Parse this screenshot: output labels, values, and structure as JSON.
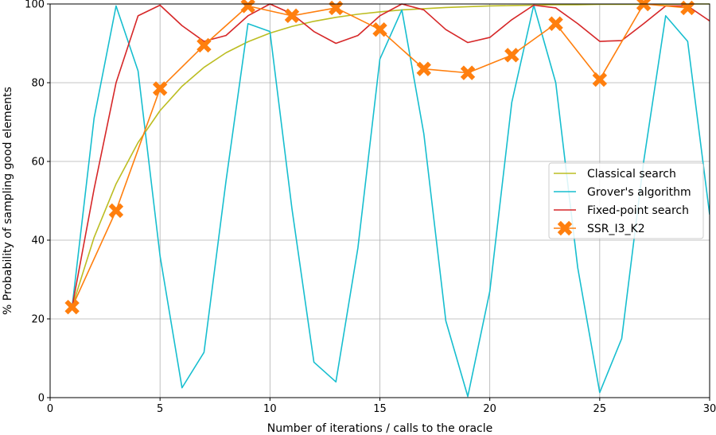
{
  "chart_data": {
    "type": "line",
    "title": "",
    "xlabel": "Number of iterations / calls to the oracle",
    "ylabel": "% Probability of sampling good elements",
    "xlim": [
      0,
      30
    ],
    "ylim": [
      0,
      100
    ],
    "xticks": [
      0,
      5,
      10,
      15,
      20,
      25,
      30
    ],
    "yticks": [
      0,
      20,
      40,
      60,
      80,
      100
    ],
    "grid": true,
    "legend_position": "center-right",
    "series": [
      {
        "name": "Classical search",
        "color": "#bcbd22",
        "marker": "none",
        "x": [
          1,
          2,
          3,
          4,
          5,
          6,
          7,
          8,
          9,
          10,
          11,
          12,
          13,
          14,
          15,
          16,
          17,
          18,
          19,
          20,
          21,
          22,
          23,
          24,
          25,
          26,
          27,
          28,
          29,
          30
        ],
        "values": [
          23,
          40.7,
          54.3,
          64.8,
          72.9,
          79.1,
          83.9,
          87.6,
          90.4,
          92.6,
          94.3,
          95.6,
          96.6,
          97.4,
          98,
          98.5,
          98.8,
          99.1,
          99.3,
          99.5,
          99.6,
          99.7,
          99.8,
          99.8,
          99.9,
          99.9,
          99.9,
          99.9,
          100,
          100
        ]
      },
      {
        "name": "Grover's algorithm",
        "color": "#17becf",
        "marker": "none",
        "x": [
          1,
          2,
          3,
          4,
          5,
          6,
          7,
          8,
          9,
          10,
          11,
          12,
          13,
          14,
          15,
          16,
          17,
          18,
          19,
          20,
          21,
          22,
          23,
          24,
          25,
          26,
          27,
          28,
          29,
          30
        ],
        "values": [
          23,
          71,
          99.5,
          83,
          36,
          2.5,
          11.5,
          55,
          95,
          93,
          48,
          9,
          4,
          38,
          86,
          98.5,
          67,
          19.5,
          0.3,
          27,
          75,
          99.7,
          80,
          33,
          1.3,
          15,
          60,
          97,
          90.5,
          46.5
        ]
      },
      {
        "name": "Fixed-point search",
        "color": "#d62728",
        "marker": "none",
        "x": [
          1,
          2,
          3,
          4,
          5,
          6,
          7,
          8,
          9,
          10,
          11,
          12,
          13,
          14,
          15,
          16,
          17,
          18,
          19,
          20,
          21,
          22,
          23,
          24,
          25,
          26,
          27,
          28,
          29,
          30
        ],
        "values": [
          23,
          53,
          80,
          97,
          99.7,
          94.5,
          90.5,
          92,
          97,
          100,
          97.5,
          93,
          90,
          92,
          97,
          100,
          98.5,
          93.5,
          90.2,
          91.5,
          96,
          99.7,
          99,
          95,
          90.5,
          90.7,
          95,
          99.5,
          99.5,
          95.7
        ]
      },
      {
        "name": "SSR_I3_K2",
        "color": "#ff7f0e",
        "marker": "X",
        "x": [
          1,
          3,
          5,
          7,
          9,
          11,
          13,
          15,
          17,
          19,
          21,
          23,
          25,
          27,
          29
        ],
        "values": [
          23,
          47.5,
          78.5,
          89.5,
          99.5,
          97,
          99,
          93.5,
          83.5,
          82.5,
          87,
          95,
          80.8,
          100,
          99
        ]
      }
    ]
  }
}
